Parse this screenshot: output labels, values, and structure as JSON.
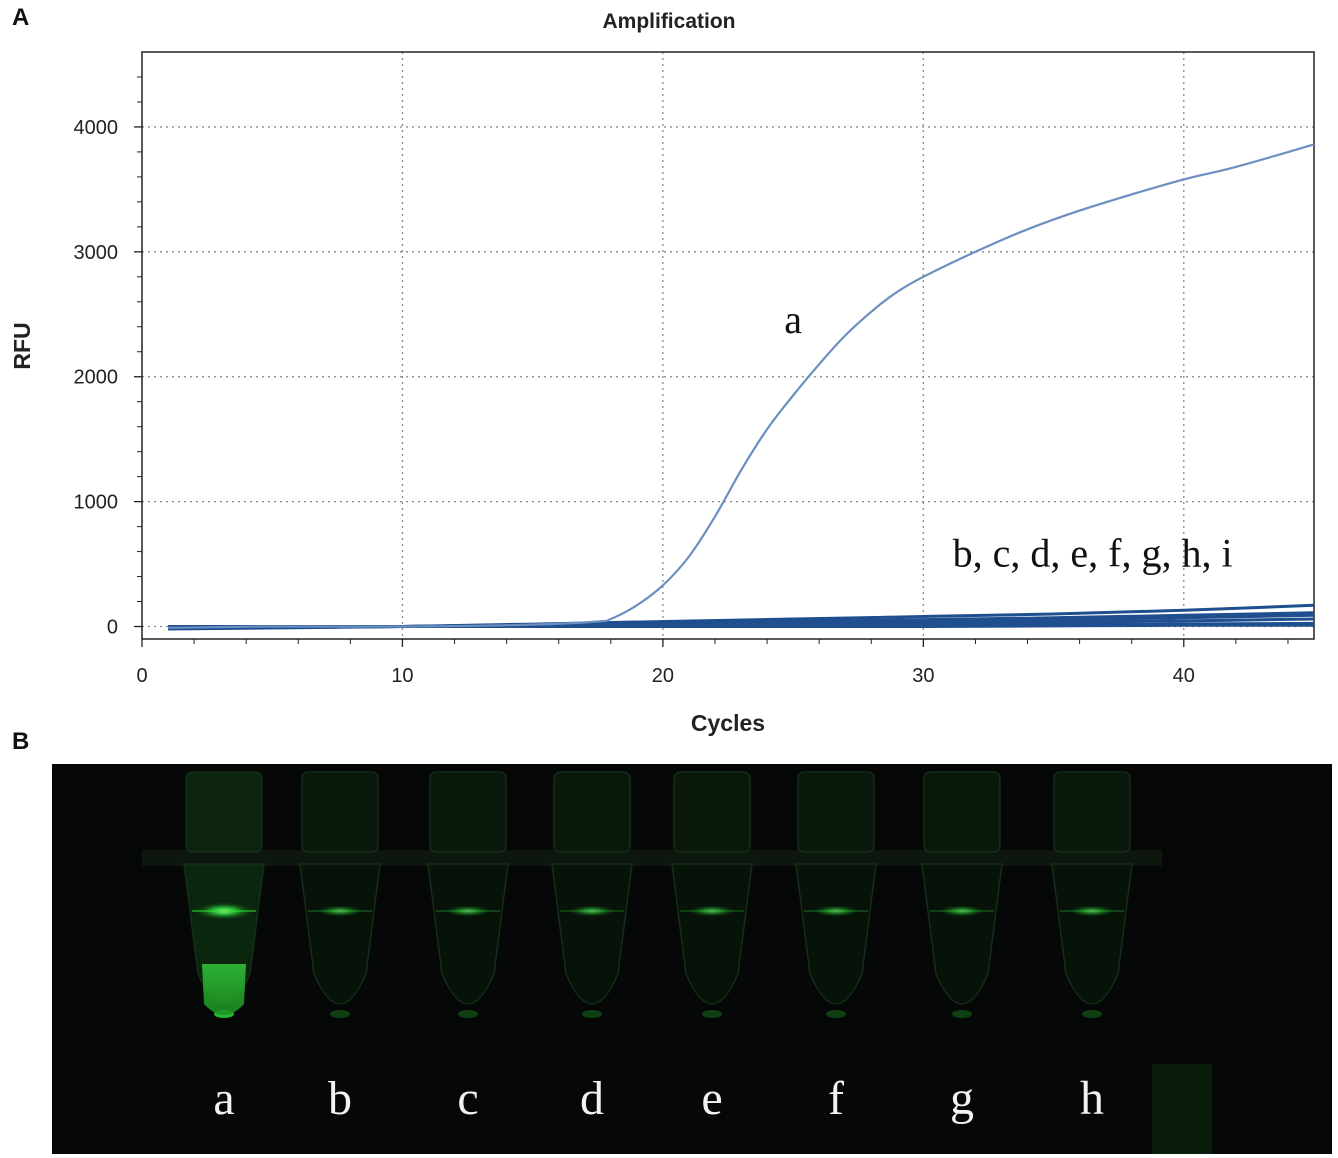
{
  "panels": {
    "a_label": "A",
    "b_label": "B"
  },
  "chart_data": {
    "type": "line",
    "title": "Amplification",
    "xlabel": "Cycles",
    "ylabel": "RFU",
    "xlim": [
      0,
      45
    ],
    "ylim": [
      -100,
      4600
    ],
    "xticks": [
      0,
      10,
      20,
      30,
      40
    ],
    "yticks": [
      0,
      1000,
      2000,
      3000,
      4000
    ],
    "grid": true,
    "series": [
      {
        "name": "a",
        "x": [
          1,
          5,
          10,
          15,
          17.5,
          18,
          19,
          20,
          21,
          22,
          23,
          24,
          25,
          26,
          27,
          28,
          29,
          30,
          32,
          34,
          36,
          38,
          40,
          42,
          45
        ],
        "y": [
          -10,
          0,
          0,
          15,
          40,
          60,
          170,
          330,
          560,
          880,
          1250,
          1580,
          1850,
          2100,
          2330,
          2520,
          2680,
          2800,
          3000,
          3180,
          3330,
          3460,
          3580,
          3680,
          3860
        ]
      },
      {
        "name": "b, c, d, e, f, g, h, i",
        "group": [
          {
            "x": [
              1,
              10,
              17.5,
              25,
              30,
              35,
              40,
              45
            ],
            "y": [
              -20,
              0,
              30,
              60,
              80,
              100,
              130,
              170
            ]
          },
          {
            "x": [
              1,
              10,
              17.5,
              25,
              30,
              35,
              40,
              45
            ],
            "y": [
              -15,
              0,
              20,
              40,
              55,
              70,
              90,
              110
            ]
          },
          {
            "x": [
              1,
              10,
              17.5,
              25,
              30,
              35,
              40,
              45
            ],
            "y": [
              -10,
              0,
              15,
              30,
              40,
              55,
              70,
              90
            ]
          },
          {
            "x": [
              1,
              10,
              17.5,
              25,
              30,
              35,
              40,
              45
            ],
            "y": [
              -10,
              0,
              10,
              15,
              25,
              35,
              45,
              60
            ]
          },
          {
            "x": [
              1,
              10,
              17.5,
              25,
              30,
              35,
              40,
              45
            ],
            "y": [
              -5,
              0,
              5,
              5,
              10,
              15,
              20,
              25
            ]
          },
          {
            "x": [
              1,
              10,
              17.5,
              25,
              30,
              35,
              40,
              45
            ],
            "y": [
              0,
              0,
              0,
              0,
              0,
              5,
              10,
              10
            ]
          }
        ]
      }
    ],
    "annotations": [
      {
        "text": "a",
        "x": 25,
        "y": 2350
      },
      {
        "text": "b, c, d, e, f, g, h, i",
        "x": 36.5,
        "y": 480
      }
    ],
    "colors": {
      "curve_a": "#6b8fc0",
      "curves_bi": "#1f4f8f",
      "grid": "#888888"
    }
  },
  "photo": {
    "tube_labels": [
      "a",
      "b",
      "c",
      "d",
      "e",
      "f",
      "g",
      "h"
    ],
    "positive_tube": "a",
    "glow_color": "#2ee63a"
  }
}
